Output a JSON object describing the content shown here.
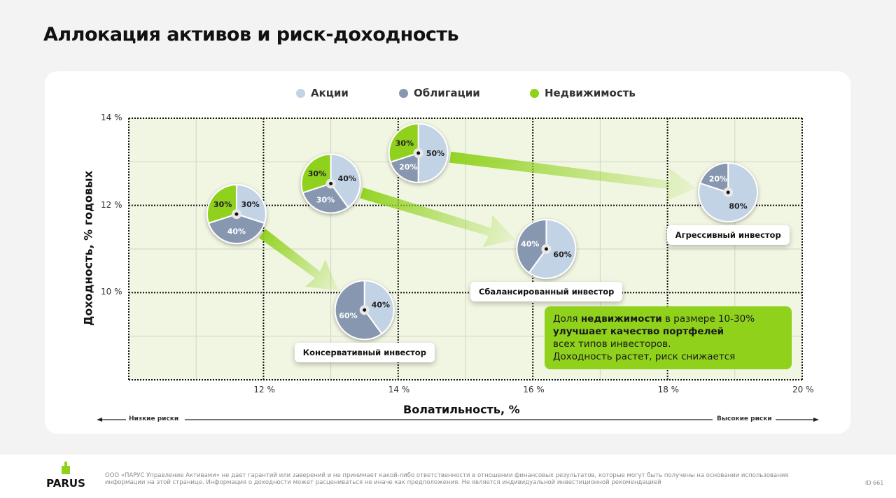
{
  "title": "Аллокация активов и риск-доходность",
  "colors": {
    "stocks": "#c3d3e6",
    "bonds": "#8797b0",
    "real_estate": "#8fd11b",
    "plot_bg": "#f1f6e2"
  },
  "chart_data": {
    "type": "scatter",
    "title": "",
    "xlabel": "Волатильность, %",
    "ylabel": "Доходность, % годовых",
    "xlim": [
      10,
      20
    ],
    "ylim": [
      8,
      14
    ],
    "x_ticks": [
      "12 %",
      "14 %",
      "16 %",
      "18 %",
      "20 %"
    ],
    "x_tick_values": [
      12,
      14,
      16,
      18,
      20
    ],
    "y_ticks": [
      "14 %",
      "12 %",
      "10 %"
    ],
    "y_tick_values": [
      14,
      12,
      10
    ],
    "grid": true,
    "legend": [
      "Акции",
      "Облигации",
      "Недвижимость"
    ],
    "legend_placement": "top-center",
    "portfolios": [
      {
        "name": "Консервативный инвестор",
        "x": 13.5,
        "y": 9.6,
        "slices": [
          {
            "asset": "stocks",
            "value": 40,
            "label": "40%"
          },
          {
            "asset": "bonds",
            "value": 60,
            "label": "60%"
          }
        ],
        "labeled": true
      },
      {
        "name": "",
        "x": 11.6,
        "y": 11.8,
        "slices": [
          {
            "asset": "stocks",
            "value": 30,
            "label": "30%"
          },
          {
            "asset": "bonds",
            "value": 40,
            "label": "40%"
          },
          {
            "asset": "real_estate",
            "value": 30,
            "label": "30%"
          }
        ],
        "labeled": false
      },
      {
        "name": "Сбалансированный инвестор",
        "x": 16.2,
        "y": 11.0,
        "slices": [
          {
            "asset": "stocks",
            "value": 60,
            "label": "60%"
          },
          {
            "asset": "bonds",
            "value": 40,
            "label": "40%"
          }
        ],
        "labeled": true
      },
      {
        "name": "",
        "x": 13.0,
        "y": 12.5,
        "slices": [
          {
            "asset": "stocks",
            "value": 40,
            "label": "40%"
          },
          {
            "asset": "bonds",
            "value": 30,
            "label": "30%"
          },
          {
            "asset": "real_estate",
            "value": 30,
            "label": "30%"
          }
        ],
        "labeled": false
      },
      {
        "name": "Агрессивный инвестор",
        "x": 18.9,
        "y": 12.3,
        "slices": [
          {
            "asset": "stocks",
            "value": 80,
            "label": "80%"
          },
          {
            "asset": "bonds",
            "value": 20,
            "label": "20%"
          }
        ],
        "labeled": true
      },
      {
        "name": "",
        "x": 14.3,
        "y": 13.2,
        "slices": [
          {
            "asset": "stocks",
            "value": 50,
            "label": "50%"
          },
          {
            "asset": "bonds",
            "value": 20,
            "label": "20%"
          },
          {
            "asset": "real_estate",
            "value": 30,
            "label": "30%"
          }
        ],
        "labeled": false
      }
    ],
    "arrows": [
      [
        0,
        1
      ],
      [
        2,
        3
      ],
      [
        4,
        5
      ]
    ]
  },
  "risk_low": "Низкие риски",
  "risk_high": "Высокие риски",
  "callout": {
    "p1": "Доля ",
    "p1_bold": "недвижимости",
    "p1_end": " в размере 10-30%",
    "p2_bold": "улучшает качество портфелей",
    "p3": "всех типов инвесторов.",
    "p4": "Доходность растет, риск снижается"
  },
  "footer": {
    "logo": "PARUS",
    "disclaimer": "ООО «ПАРУС Управление Активами» не дает гарантий или заверений и не принимает какой-либо ответственности в отношении финансовых результатов, которые могут быть получены на основании использования информации на этой странице. Информация о доходности может расцениваться не иначе как предположения. Не является индивидуальной инвестиционной рекомендацией",
    "page_id": "ID 661"
  }
}
